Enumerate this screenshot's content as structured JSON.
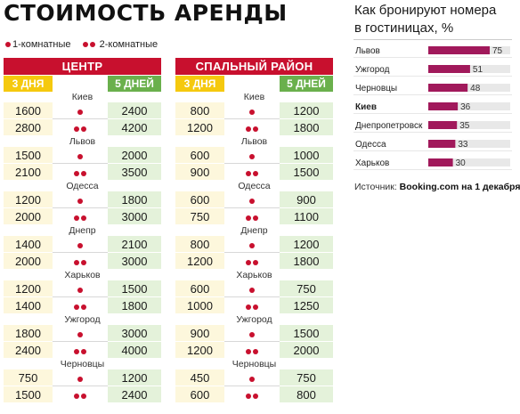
{
  "title": "СТОИМОСТЬ АРЕНДЫ",
  "legend": {
    "one_room": "1-комнатные",
    "two_room": "2-комнатные"
  },
  "colors": {
    "accent_red": "#c8102e",
    "yellow": "#f5c90e",
    "green": "#6ab04c",
    "bar": "#a1195b"
  },
  "chart_data": [
    {
      "type": "table",
      "columns": [
        "3 ДНЯ",
        "",
        "5 ДНЕЙ"
      ],
      "tables": [
        {
          "name": "ЦЕНТР",
          "rows": [
            {
              "city": "Киев",
              "one_room": [
                "1600",
                "2400"
              ],
              "two_room": [
                "2800",
                "4200"
              ]
            },
            {
              "city": "Львов",
              "one_room": [
                "1500",
                "2000"
              ],
              "two_room": [
                "2100",
                "3500"
              ]
            },
            {
              "city": "Одесса",
              "one_room": [
                "1200",
                "1800"
              ],
              "two_room": [
                "2000",
                "3000"
              ]
            },
            {
              "city": "Днепр",
              "one_room": [
                "1400",
                "2100"
              ],
              "two_room": [
                "2000",
                "3000"
              ]
            },
            {
              "city": "Харьков",
              "one_room": [
                "1200",
                "1500"
              ],
              "two_room": [
                "1400",
                "1800"
              ]
            },
            {
              "city": "Ужгород",
              "one_room": [
                "1800",
                "3000"
              ],
              "two_room": [
                "2400",
                "4000"
              ]
            },
            {
              "city": "Черновцы",
              "one_room": [
                "750",
                "1200"
              ],
              "two_room": [
                "1500",
                "2400"
              ]
            }
          ]
        },
        {
          "name": "СПАЛЬНЫЙ РАЙОН",
          "rows": [
            {
              "city": "Киев",
              "one_room": [
                "800",
                "1200"
              ],
              "two_room": [
                "1200",
                "1800"
              ]
            },
            {
              "city": "Львов",
              "one_room": [
                "600",
                "1000"
              ],
              "two_room": [
                "900",
                "1500"
              ]
            },
            {
              "city": "Одесса",
              "one_room": [
                "600",
                "900"
              ],
              "two_room": [
                "750",
                "1100"
              ]
            },
            {
              "city": "Днепр",
              "one_room": [
                "800",
                "1200"
              ],
              "two_room": [
                "1200",
                "1800"
              ]
            },
            {
              "city": "Харьков",
              "one_room": [
                "600",
                "750"
              ],
              "two_room": [
                "1000",
                "1250"
              ]
            },
            {
              "city": "Ужгород",
              "one_room": [
                "900",
                "1500"
              ],
              "two_room": [
                "1200",
                "2000"
              ]
            },
            {
              "city": "Черновцы",
              "one_room": [
                "450",
                "750"
              ],
              "two_room": [
                "600",
                "800"
              ]
            }
          ]
        }
      ]
    },
    {
      "type": "bar",
      "orientation": "horizontal",
      "title_line1": "Как бронируют номера",
      "title_line2": "в гостиницах,",
      "unit": "%",
      "categories": [
        "Львов",
        "Ужгород",
        "Черновцы",
        "Киев",
        "Днепропетровск",
        "Одесса",
        "Харьков"
      ],
      "values": [
        75,
        51,
        48,
        36,
        35,
        33,
        30
      ],
      "xlim": [
        0,
        100
      ],
      "bold_category": "Киев"
    }
  ],
  "source": {
    "prefix": "Источник:",
    "name": "Booking.com",
    "suffix": "на 1 декабря"
  }
}
